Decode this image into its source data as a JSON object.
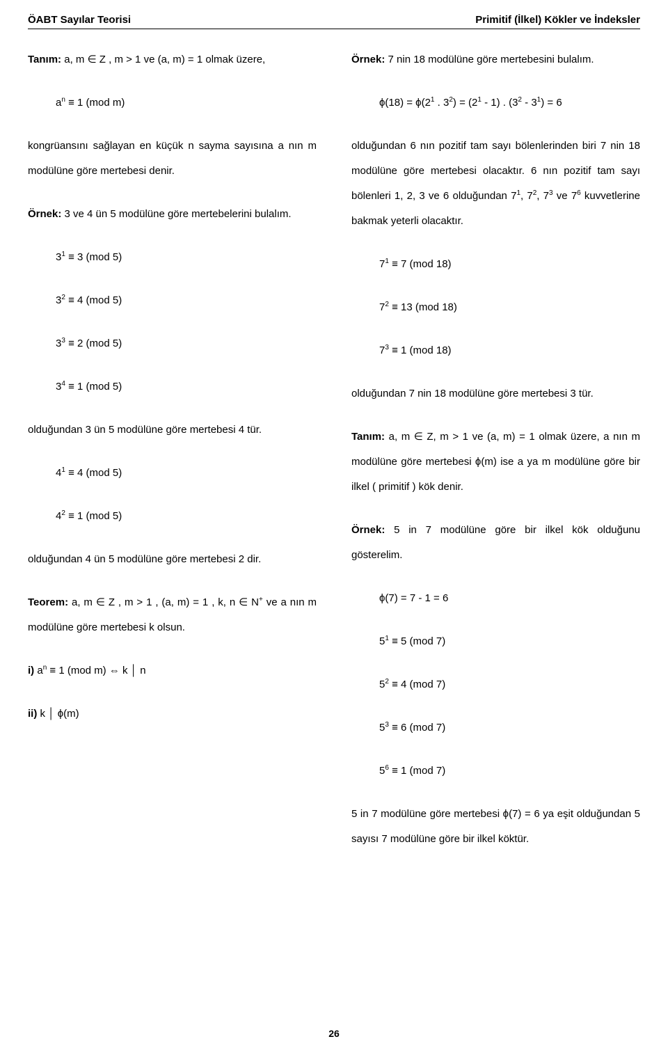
{
  "header": {
    "left": "ÖABT Sayılar Teorisi",
    "right": "Primitif (İlkel) Kökler ve İndeksler"
  },
  "left": {
    "t1": "Tanım:",
    "t1_body": " a, m ∈ Z , m > 1 ve (a, m) = 1 olmak üzere,",
    "eq1_pre": "a",
    "eq1_sup": "n",
    "eq1_post": " ≡ 1 (mod m)",
    "p1": "kongrüansını sağlayan en küçük n sayma sayısına a nın m modülüne göre mertebesi denir.",
    "ex1": "Örnek:",
    "ex1_body": " 3 ve 4 ün 5 modülüne göre mertebelerini bulalım.",
    "m31_pre": "3",
    "m31_sup": "1",
    "m31_post": " ≡ 3 (mod 5)",
    "m32_pre": "3",
    "m32_sup": "2",
    "m32_post": " ≡ 4 (mod 5)",
    "m33_pre": "3",
    "m33_sup": "3",
    "m33_post": " ≡ 2 (mod 5)",
    "m34_pre": "3",
    "m34_sup": "4",
    "m34_post": " ≡ 1 (mod 5)",
    "p2": "olduğundan 3 ün 5 modülüne göre mertebesi 4 tür.",
    "m41_pre": "4",
    "m41_sup": "1",
    "m41_post": " ≡ 4 (mod 5)",
    "m42_pre": "4",
    "m42_sup": "2",
    "m42_post": " ≡ 1 (mod 5)",
    "p3": "olduğundan 4 ün 5 modülüne göre mertebesi 2 dir.",
    "teo": "Teorem:",
    "teo_body_a": " a, m ∈ Z , m > 1 , (a, m) = 1 , k, n ∈ N",
    "teo_plus": "+",
    "teo_body_b": " ve a nın m modülüne göre mertebesi k olsun.",
    "i_label": "i)",
    "i_a_pre": " a",
    "i_a_sup": "n",
    "i_a_post": " ≡ 1 (mod m) ⇔ k │ n",
    "ii_label": "ii)",
    "ii_body": " k │ ϕ(m)"
  },
  "right": {
    "ex2": "Örnek:",
    "ex2_body": " 7 nin 18 modülüne göre mertebesini bulalım.",
    "phi_a": "ϕ(18) = ϕ(2",
    "phi_b_sup": "1",
    "phi_c": " . 3",
    "phi_d_sup": "2",
    "phi_e": ") = (2",
    "phi_f_sup": "1",
    "phi_g": " - 1) . (3",
    "phi_h_sup": "2",
    "phi_i": " - 3",
    "phi_j_sup": "1",
    "phi_k": ") = 6",
    "p1a": "olduğundan 6 nın pozitif tam sayı bölenlerinden biri 7 nin 18 modülüne göre mertebesi olacaktır. 6 nın pozitif tam sayı bölenleri 1, 2, 3 ve 6 olduğundan 7",
    "p1b_sup": "1",
    "p1c": ", 7",
    "p1d_sup": "2",
    "p1e": ", 7",
    "p1f_sup": "3",
    "p1g": " ve 7",
    "p1h_sup": "6",
    "p1i": " kuvvetlerine bakmak yeterli olacaktır.",
    "m71_pre": "7",
    "m71_sup": "1",
    "m71_post": " ≡ 7 (mod 18)",
    "m72_pre": "7",
    "m72_sup": "2",
    "m72_post": " ≡ 13 (mod 18)",
    "m73_pre": "7",
    "m73_sup": "3",
    "m73_post": " ≡ 1 (mod 18)",
    "p2": "olduğundan 7 nin 18 modülüne göre mertebesi 3 tür.",
    "t2": "Tanım:",
    "t2_body": " a, m ∈ Z, m > 1 ve (a, m) = 1 olmak üzere, a nın m modülüne göre mertebesi ϕ(m) ise a ya m modülüne göre bir ilkel ( primitif ) kök denir.",
    "ex3": "Örnek:",
    "ex3_body": " 5 in 7 modülüne göre bir ilkel kök olduğunu gösterelim.",
    "phi7": "ϕ(7) = 7 - 1 = 6",
    "m51_pre": "5",
    "m51_sup": "1",
    "m51_post": " ≡ 5 (mod 7)",
    "m52_pre": "5",
    "m52_sup": "2",
    "m52_post": " ≡ 4 (mod 7)",
    "m53_pre": "5",
    "m53_sup": "3",
    "m53_post": " ≡ 6 (mod 7)",
    "m56_pre": "5",
    "m56_sup": "6",
    "m56_post": " ≡ 1 (mod 7)",
    "p3": "5 in 7 modülüne göre mertebesi ϕ(7) = 6 ya eşit olduğundan 5 sayısı 7 modülüne göre bir ilkel köktür."
  },
  "page": "26"
}
